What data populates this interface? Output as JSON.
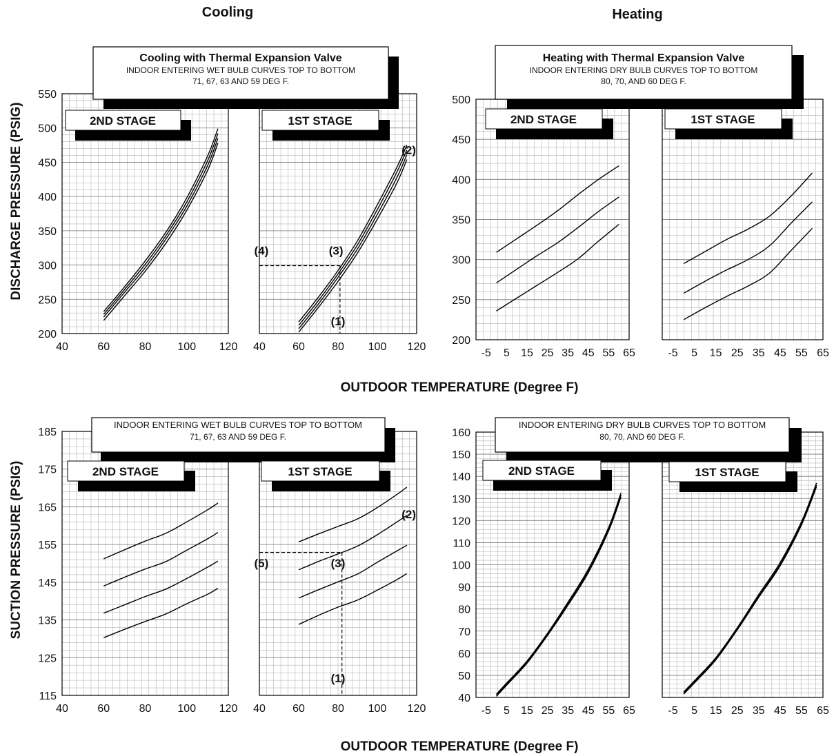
{
  "headings": {
    "cooling": "Cooling",
    "heating": "Heating"
  },
  "labels": {
    "discharge_ylabel": "DISCHARGE  PRESSURE  (PSIG)",
    "suction_ylabel": "SUCTION  PRESSURE  (PSIG)",
    "xlabel_top": "OUTDOOR  TEMPERATURE  (Degree  F)",
    "xlabel_bottom": "OUTDOOR  TEMPERATURE  (Degree  F)",
    "stage2": "2ND STAGE",
    "stage1": "1ST STAGE"
  },
  "boxes": {
    "cool_top": {
      "title": "Cooling with Thermal Expansion Valve",
      "line1": "INDOOR ENTERING WET BULB CURVES TOP TO BOTTOM",
      "line2": "71, 67,  63 AND 59 DEG F."
    },
    "heat_top": {
      "title": "Heating with Thermal Expansion Valve",
      "line1": "INDOOR ENTERING DRY BULB CURVES TOP TO BOTTOM",
      "line2": "80, 70,  AND 60 DEG F."
    },
    "cool_bottom": {
      "line1": "INDOOR ENTERING WET BULB CURVES TOP TO BOTTOM",
      "line2": "71, 67,  63 AND 59 DEG F."
    },
    "heat_bottom": {
      "line1": "INDOOR ENTERING DRY BULB CURVES TOP TO BOTTOM",
      "line2": "80, 70,  AND 60 DEG F."
    }
  },
  "markers": {
    "discharge": [
      {
        "text": "(1)",
        "x": 80,
        "y": 212
      },
      {
        "text": "(2)",
        "x": 116,
        "y": 462
      },
      {
        "text": "(3)",
        "x": 79,
        "y": 315
      },
      {
        "text": "(4)",
        "x": 41,
        "y": 315
      }
    ],
    "suction": [
      {
        "text": "(1)",
        "x": 80,
        "y": 118.5
      },
      {
        "text": "(2)",
        "x": 116,
        "y": 162
      },
      {
        "text": "(3)",
        "x": 80,
        "y": 149
      },
      {
        "text": "(5)",
        "x": 41,
        "y": 149
      }
    ]
  },
  "chart_data": [
    {
      "id": "cooling-discharge",
      "type": "line",
      "title": "Cooling with Thermal Expansion Valve",
      "xlabel": "OUTDOOR  TEMPERATURE  (Degree  F)",
      "ylabel": "DISCHARGE  PRESSURE  (PSIG)",
      "ylim": [
        200,
        550
      ],
      "yticks": [
        200,
        250,
        300,
        350,
        400,
        450,
        500,
        550
      ],
      "grid": true,
      "panels": [
        {
          "label": "2ND STAGE",
          "xlim": [
            40,
            120
          ],
          "xticks": [
            40,
            60,
            80,
            100,
            120
          ],
          "series": [
            {
              "name": "71",
              "x": [
                60,
                70,
                80,
                90,
                100,
                110,
                115
              ],
              "values": [
                232,
                268,
                306,
                348,
                398,
                459,
                499
              ]
            },
            {
              "name": "67",
              "x": [
                60,
                70,
                80,
                90,
                100,
                110,
                115
              ],
              "values": [
                228,
                264,
                301,
                343,
                392,
                452,
                492
              ]
            },
            {
              "name": "63",
              "x": [
                60,
                70,
                80,
                90,
                100,
                110,
                115
              ],
              "values": [
                224,
                260,
                296,
                338,
                386,
                445,
                485
              ]
            },
            {
              "name": "59",
              "x": [
                60,
                70,
                80,
                90,
                100,
                110,
                115
              ],
              "values": [
                219,
                255,
                291,
                332,
                380,
                438,
                478
              ]
            }
          ]
        },
        {
          "label": "1ST STAGE",
          "xlim": [
            40,
            120
          ],
          "xticks": [
            40,
            60,
            80,
            100,
            120
          ],
          "series": [
            {
              "name": "71",
              "x": [
                60,
                70,
                80,
                90,
                100,
                110,
                115
              ],
              "values": [
                217,
                253,
                292,
                336,
                388,
                443,
                475
              ]
            },
            {
              "name": "67",
              "x": [
                60,
                70,
                80,
                90,
                100,
                110,
                115
              ],
              "values": [
                212,
                248,
                287,
                330,
                381,
                436,
                468
              ]
            },
            {
              "name": "63",
              "x": [
                60,
                70,
                80,
                90,
                100,
                110,
                115
              ],
              "values": [
                207,
                243,
                282,
                324,
                374,
                428,
                461
              ]
            },
            {
              "name": "59",
              "x": [
                60,
                70,
                80,
                90,
                100,
                110,
                115
              ],
              "values": [
                202,
                238,
                276,
                318,
                367,
                420,
                454
              ]
            }
          ],
          "guide": {
            "x": 81,
            "y": 299
          }
        }
      ]
    },
    {
      "id": "heating-discharge",
      "type": "line",
      "title": "Heating with Thermal Expansion Valve",
      "xlabel": "OUTDOOR  TEMPERATURE  (Degree  F)",
      "ylabel": "DISCHARGE  PRESSURE  (PSIG)",
      "ylim": [
        200,
        500
      ],
      "yticks": [
        200,
        250,
        300,
        350,
        400,
        450,
        500
      ],
      "grid": true,
      "panels": [
        {
          "label": "2ND STAGE",
          "xlim": [
            -10,
            65
          ],
          "xticks": [
            -5,
            5,
            15,
            25,
            35,
            45,
            55,
            65
          ],
          "series": [
            {
              "name": "80",
              "x": [
                0,
                10,
                20,
                30,
                40,
                50,
                60
              ],
              "values": [
                309,
                326,
                343,
                361,
                381,
                400,
                417
              ]
            },
            {
              "name": "70",
              "x": [
                0,
                10,
                20,
                30,
                40,
                50,
                60
              ],
              "values": [
                271,
                288,
                305,
                321,
                340,
                360,
                378
              ]
            },
            {
              "name": "60",
              "x": [
                0,
                10,
                20,
                30,
                40,
                50,
                60
              ],
              "values": [
                236,
                252,
                268,
                284,
                301,
                323,
                344
              ]
            }
          ]
        },
        {
          "label": "1ST STAGE",
          "xlim": [
            -10,
            65
          ],
          "xticks": [
            -5,
            5,
            15,
            25,
            35,
            45,
            55,
            65
          ],
          "series": [
            {
              "name": "80",
              "x": [
                0,
                10,
                20,
                30,
                40,
                50,
                60
              ],
              "values": [
                295,
                310,
                325,
                338,
                354,
                379,
                408
              ]
            },
            {
              "name": "70",
              "x": [
                0,
                10,
                20,
                30,
                40,
                50,
                60
              ],
              "values": [
                258,
                273,
                287,
                300,
                317,
                345,
                372
              ]
            },
            {
              "name": "60",
              "x": [
                0,
                10,
                20,
                30,
                40,
                50,
                60
              ],
              "values": [
                225,
                240,
                254,
                267,
                283,
                311,
                339
              ]
            }
          ]
        }
      ]
    },
    {
      "id": "cooling-suction",
      "type": "line",
      "xlabel": "OUTDOOR  TEMPERATURE  (Degree  F)",
      "ylabel": "SUCTION  PRESSURE  (PSIG)",
      "ylim": [
        115,
        185
      ],
      "yticks": [
        115,
        125,
        135,
        145,
        155,
        165,
        175,
        185
      ],
      "grid": true,
      "panels": [
        {
          "label": "2ND STAGE",
          "xlim": [
            40,
            120
          ],
          "xticks": [
            40,
            60,
            80,
            100,
            120
          ],
          "series": [
            {
              "name": "71",
              "x": [
                60,
                70,
                80,
                90,
                100,
                110,
                115
              ],
              "values": [
                151.2,
                153.6,
                155.9,
                158,
                161,
                164.2,
                166
              ]
            },
            {
              "name": "67",
              "x": [
                60,
                70,
                80,
                90,
                100,
                110,
                115
              ],
              "values": [
                144,
                146.3,
                148.5,
                150.5,
                153.5,
                156.5,
                158.2
              ]
            },
            {
              "name": "63",
              "x": [
                60,
                70,
                80,
                90,
                100,
                110,
                115
              ],
              "values": [
                136.8,
                139,
                141.2,
                143.2,
                146,
                149,
                150.6
              ]
            },
            {
              "name": "59",
              "x": [
                60,
                70,
                80,
                90,
                100,
                110,
                115
              ],
              "values": [
                130.3,
                132.5,
                134.6,
                136.6,
                139.3,
                141.8,
                143.4
              ]
            }
          ]
        },
        {
          "label": "1ST STAGE",
          "xlim": [
            40,
            120
          ],
          "xticks": [
            40,
            60,
            80,
            100,
            120
          ],
          "series": [
            {
              "name": "71",
              "x": [
                60,
                70,
                80,
                90,
                100,
                110,
                115
              ],
              "values": [
                155.7,
                157.8,
                159.8,
                161.8,
                164.8,
                168.3,
                170.2
              ]
            },
            {
              "name": "67",
              "x": [
                60,
                70,
                80,
                90,
                100,
                110,
                115
              ],
              "values": [
                148.3,
                150.5,
                152.5,
                154.6,
                157.6,
                161,
                162.7
              ]
            },
            {
              "name": "63",
              "x": [
                60,
                70,
                80,
                90,
                100,
                110,
                115
              ],
              "values": [
                140.8,
                143,
                145.1,
                147.2,
                150.3,
                153.3,
                154.8
              ]
            },
            {
              "name": "59",
              "x": [
                60,
                70,
                80,
                90,
                100,
                110,
                115
              ],
              "values": [
                133.8,
                136.2,
                138.4,
                140.3,
                142.9,
                145.7,
                147.3
              ]
            }
          ],
          "guide": {
            "x": 82,
            "y": 152.9
          }
        }
      ]
    },
    {
      "id": "heating-suction",
      "type": "line",
      "xlabel": "OUTDOOR  TEMPERATURE  (Degree  F)",
      "ylabel": "",
      "ylim": [
        40,
        160
      ],
      "yticks": [
        40,
        50,
        60,
        70,
        80,
        90,
        100,
        110,
        120,
        130,
        140,
        150,
        160
      ],
      "grid": true,
      "panels": [
        {
          "label": "2ND STAGE",
          "xlim": [
            -10,
            65
          ],
          "xticks": [
            -5,
            5,
            15,
            25,
            35,
            45,
            55,
            65
          ],
          "series": [
            {
              "name": "80",
              "x": [
                0,
                5,
                15,
                25,
                35,
                45,
                55,
                61
              ],
              "values": [
                41.5,
                46.5,
                56.5,
                69,
                83,
                98,
                117,
                132.5
              ]
            },
            {
              "name": "70",
              "x": [
                0,
                5,
                15,
                25,
                35,
                45,
                55,
                61
              ],
              "values": [
                41,
                46,
                56,
                68.5,
                82.3,
                97.2,
                116.2,
                131.6
              ]
            },
            {
              "name": "60",
              "x": [
                0,
                5,
                15,
                25,
                35,
                45,
                55,
                61
              ],
              "values": [
                40.5,
                45.5,
                55.5,
                68,
                81.6,
                96.4,
                115.4,
                130.7
              ]
            }
          ]
        },
        {
          "label": "1ST STAGE",
          "xlim": [
            -10,
            65
          ],
          "xticks": [
            -5,
            5,
            15,
            25,
            35,
            45,
            55,
            65
          ],
          "series": [
            {
              "name": "80",
              "x": [
                0,
                5,
                15,
                25,
                35,
                45,
                55,
                62
              ],
              "values": [
                42.5,
                47.5,
                58,
                71.5,
                86.5,
                101,
                119.5,
                137
              ]
            },
            {
              "name": "70",
              "x": [
                0,
                5,
                15,
                25,
                35,
                45,
                55,
                62
              ],
              "values": [
                42,
                47,
                57.5,
                71,
                85.8,
                100.2,
                118.7,
                136.1
              ]
            },
            {
              "name": "60",
              "x": [
                0,
                5,
                15,
                25,
                35,
                45,
                55,
                62
              ],
              "values": [
                41.5,
                46.5,
                57,
                70.5,
                85.2,
                99.5,
                118,
                135.3
              ]
            }
          ]
        }
      ]
    }
  ]
}
